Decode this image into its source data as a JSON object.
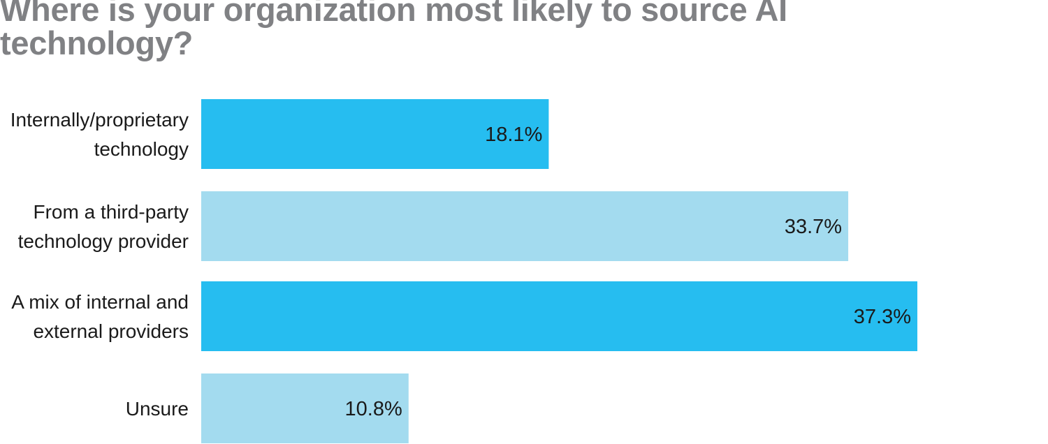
{
  "chart_data": {
    "type": "bar",
    "orientation": "horizontal",
    "title": "Where is your organization most likely to source AI technology?",
    "categories": [
      [
        "Internally/proprietary",
        "technology"
      ],
      [
        "From a third-party",
        "technology provider"
      ],
      [
        "A mix of internal and",
        "external providers"
      ],
      [
        "Unsure"
      ]
    ],
    "values": [
      18.1,
      33.7,
      37.3,
      10.8
    ],
    "value_labels": [
      "18.1%",
      "33.7%",
      "37.3%",
      "10.8%"
    ],
    "xlim": [
      0,
      37.3
    ],
    "unit": "%",
    "grid": false,
    "legend": "none",
    "colors": [
      "#26bdf0",
      "#a3dbef",
      "#26bdf0",
      "#a3dbef"
    ]
  }
}
